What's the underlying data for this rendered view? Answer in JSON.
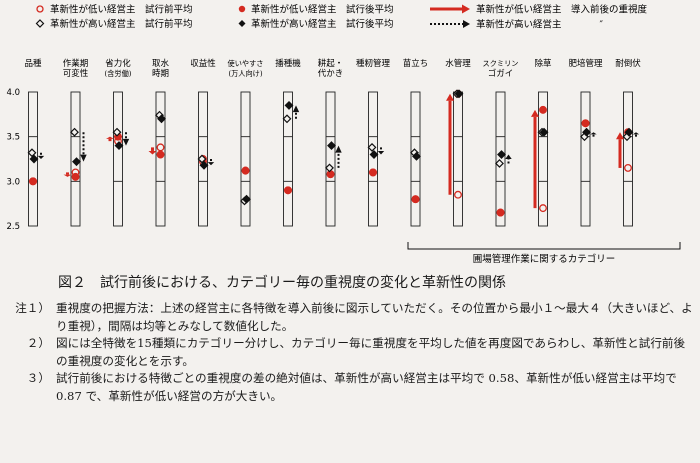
{
  "legend": {
    "low_before": "革新性が低い経営主　試行前平均",
    "high_before": "革新性が高い経営主　試行前平均",
    "low_after": "革新性が低い経営主　試行後平均",
    "high_after": "革新性が高い経営主　試行後平均",
    "low_change": "革新性が低い経営主　導入前後の重視度",
    "high_change": "革新性が高い経営主　　　　″"
  },
  "colors": {
    "low": "#d42a20",
    "high": "#111111"
  },
  "group_label": "圃場管理作業に関するカテゴリー",
  "caption": "図２　試行前後における、カテゴリー毎の重視度の変化と革新性の関係",
  "notes": [
    {
      "num": "注１）",
      "text": "重視度の把握方法：上述の経営主に各特徴を導入前後に図示していただく。その位置から最小１～最大４（大きいほど、より重視），間隔は均等とみなして数値化した。"
    },
    {
      "num": "２）",
      "text": "図には全特徴を15種類にカテゴリー分けし、カテゴリー毎に重視度を平均した値を再度図であらわし、革新性と試行前後の重視度の変化とを示す。"
    },
    {
      "num": "３）",
      "text": "試行前後における特徴ごとの重視度の差の絶対値は、革新性が高い経営主は平均で 0.58、革新性が低い経営主は平均で 0.87 で、革新性が低い経営の方が大きい。"
    }
  ],
  "chart_data": {
    "type": "dot-change",
    "ylim": [
      2.5,
      4.0
    ],
    "yticks": [
      "4.0",
      "3.5",
      "3.0",
      "2.5"
    ],
    "categories": [
      {
        "name": [
          "品種"
        ],
        "low_before": 3.0,
        "low_after": 3.0,
        "high_before": 3.32,
        "high_after": 3.25
      },
      {
        "name": [
          "作業期",
          "可変性"
        ],
        "low_before": 3.1,
        "low_after": 3.05,
        "high_before": 3.55,
        "high_after": 3.22
      },
      {
        "name": [
          "省力化",
          "(含労働)"
        ],
        "low_before": 3.45,
        "low_after": 3.5,
        "high_before": 3.55,
        "high_after": 3.4
      },
      {
        "name": [
          "取水",
          "時期"
        ],
        "low_before": 3.38,
        "low_after": 3.3,
        "high_before": 3.74,
        "high_after": 3.7
      },
      {
        "name": [
          "収益性"
        ],
        "low_before": 3.22,
        "low_after": 3.25,
        "high_before": 3.25,
        "high_after": 3.18
      },
      {
        "name": [
          "使いやすさ",
          "(万人向け)"
        ],
        "low_before": 3.12,
        "low_after": 3.12,
        "high_before": 2.78,
        "high_after": 2.8
      },
      {
        "name": [
          "播種機"
        ],
        "low_before": 2.9,
        "low_after": 2.9,
        "high_before": 3.7,
        "high_after": 3.85
      },
      {
        "name": [
          "耕起・",
          "代かき"
        ],
        "low_before": 3.08,
        "low_after": 3.08,
        "high_before": 3.15,
        "high_after": 3.4
      },
      {
        "name": [
          "種籾管理"
        ],
        "low_before": 3.1,
        "low_after": 3.1,
        "high_before": 3.38,
        "high_after": 3.3
      },
      {
        "name": [
          "苗立ち"
        ],
        "low_before": 2.8,
        "low_after": 2.8,
        "high_before": 3.32,
        "high_after": 3.28
      },
      {
        "name": [
          "水管理"
        ],
        "low_before": 2.85,
        "low_after": 3.98,
        "high_before": 3.98,
        "high_after": 3.98
      },
      {
        "name": [
          "スクミリン",
          "ゴガイ"
        ],
        "low_before": 2.65,
        "low_after": 2.65,
        "high_before": 3.2,
        "high_after": 3.3
      },
      {
        "name": [
          "除草"
        ],
        "low_before": 2.7,
        "low_after": 3.8,
        "high_before": 3.55,
        "high_after": 3.55
      },
      {
        "name": [
          "肥培管理"
        ],
        "low_before": 3.65,
        "low_after": 3.65,
        "high_before": 3.5,
        "high_after": 3.55
      },
      {
        "name": [
          "耐倒伏"
        ],
        "low_before": 3.15,
        "low_after": 3.55,
        "high_before": 3.5,
        "high_after": 3.55
      }
    ]
  }
}
